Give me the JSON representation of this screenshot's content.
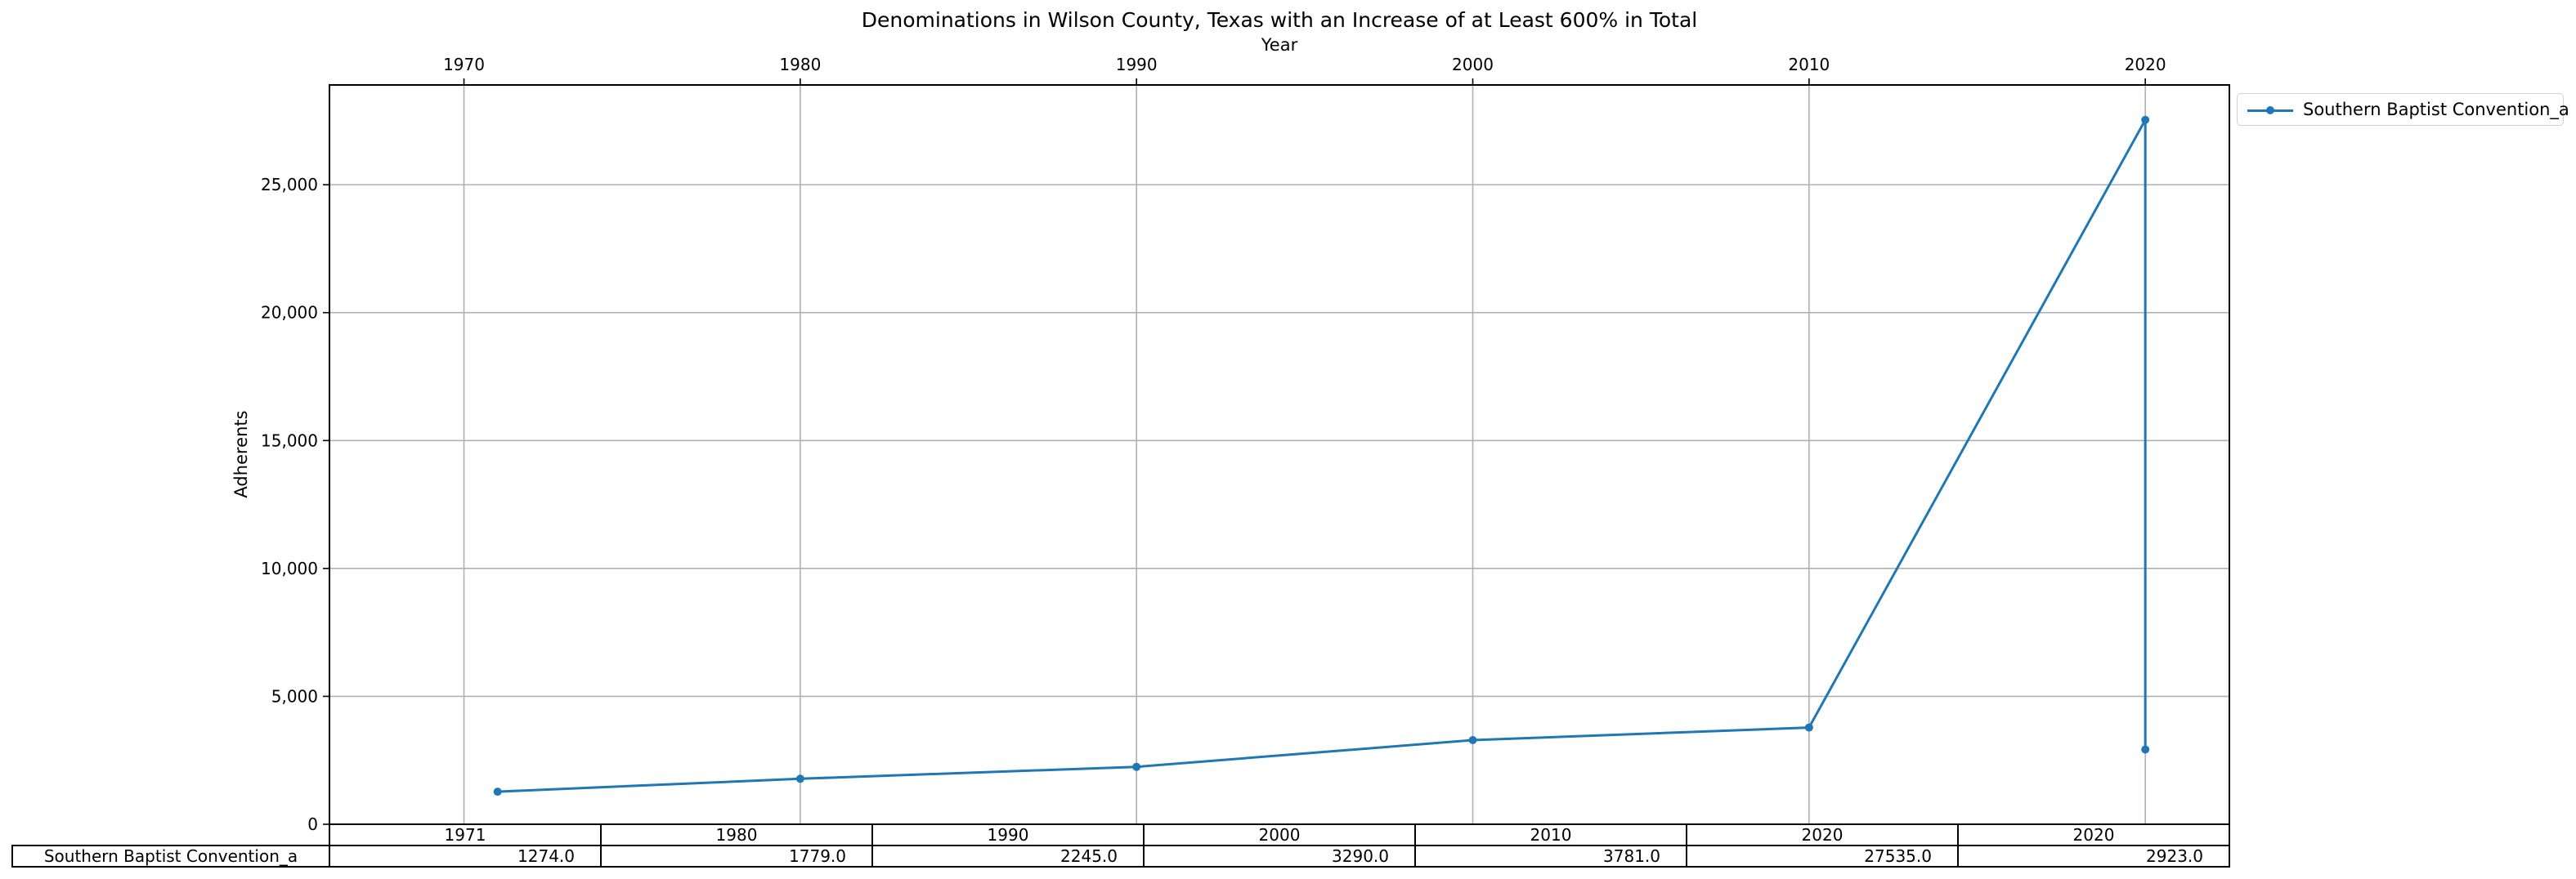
{
  "chart_data": {
    "type": "line",
    "title": "Denominations in Wilson County, Texas with an Increase of at Least 600% in Total",
    "xlabel": "Year",
    "ylabel": "Adherents",
    "x_ticks": [
      1970,
      1980,
      1990,
      2000,
      2010,
      2020
    ],
    "y_ticks": [
      0,
      5000,
      10000,
      15000,
      20000,
      25000
    ],
    "y_tick_labels": [
      "0",
      "5,000",
      "10,000",
      "15,000",
      "20,000",
      "25,000"
    ],
    "xlim": [
      1966.0,
      2022.5
    ],
    "ylim": [
      0,
      28900
    ],
    "grid": true,
    "legend_position": "outside top-right",
    "series": [
      {
        "name": "Southern Baptist Convention_a",
        "color": "#1f77b4",
        "x": [
          1971,
          1980,
          1990,
          2000,
          2010,
          2020,
          2020
        ],
        "values": [
          1274.0,
          1779.0,
          2245.0,
          3290.0,
          3781.0,
          27535.0,
          2923.0
        ]
      }
    ],
    "table": {
      "columns": [
        "1971",
        "1980",
        "1990",
        "2000",
        "2010",
        "2020",
        "2020"
      ],
      "rows": [
        {
          "label": "Southern Baptist Convention_a",
          "cells": [
            "1274.0",
            "1779.0",
            "2245.0",
            "3290.0",
            "3781.0",
            "27535.0",
            "2923.0"
          ]
        }
      ]
    }
  }
}
